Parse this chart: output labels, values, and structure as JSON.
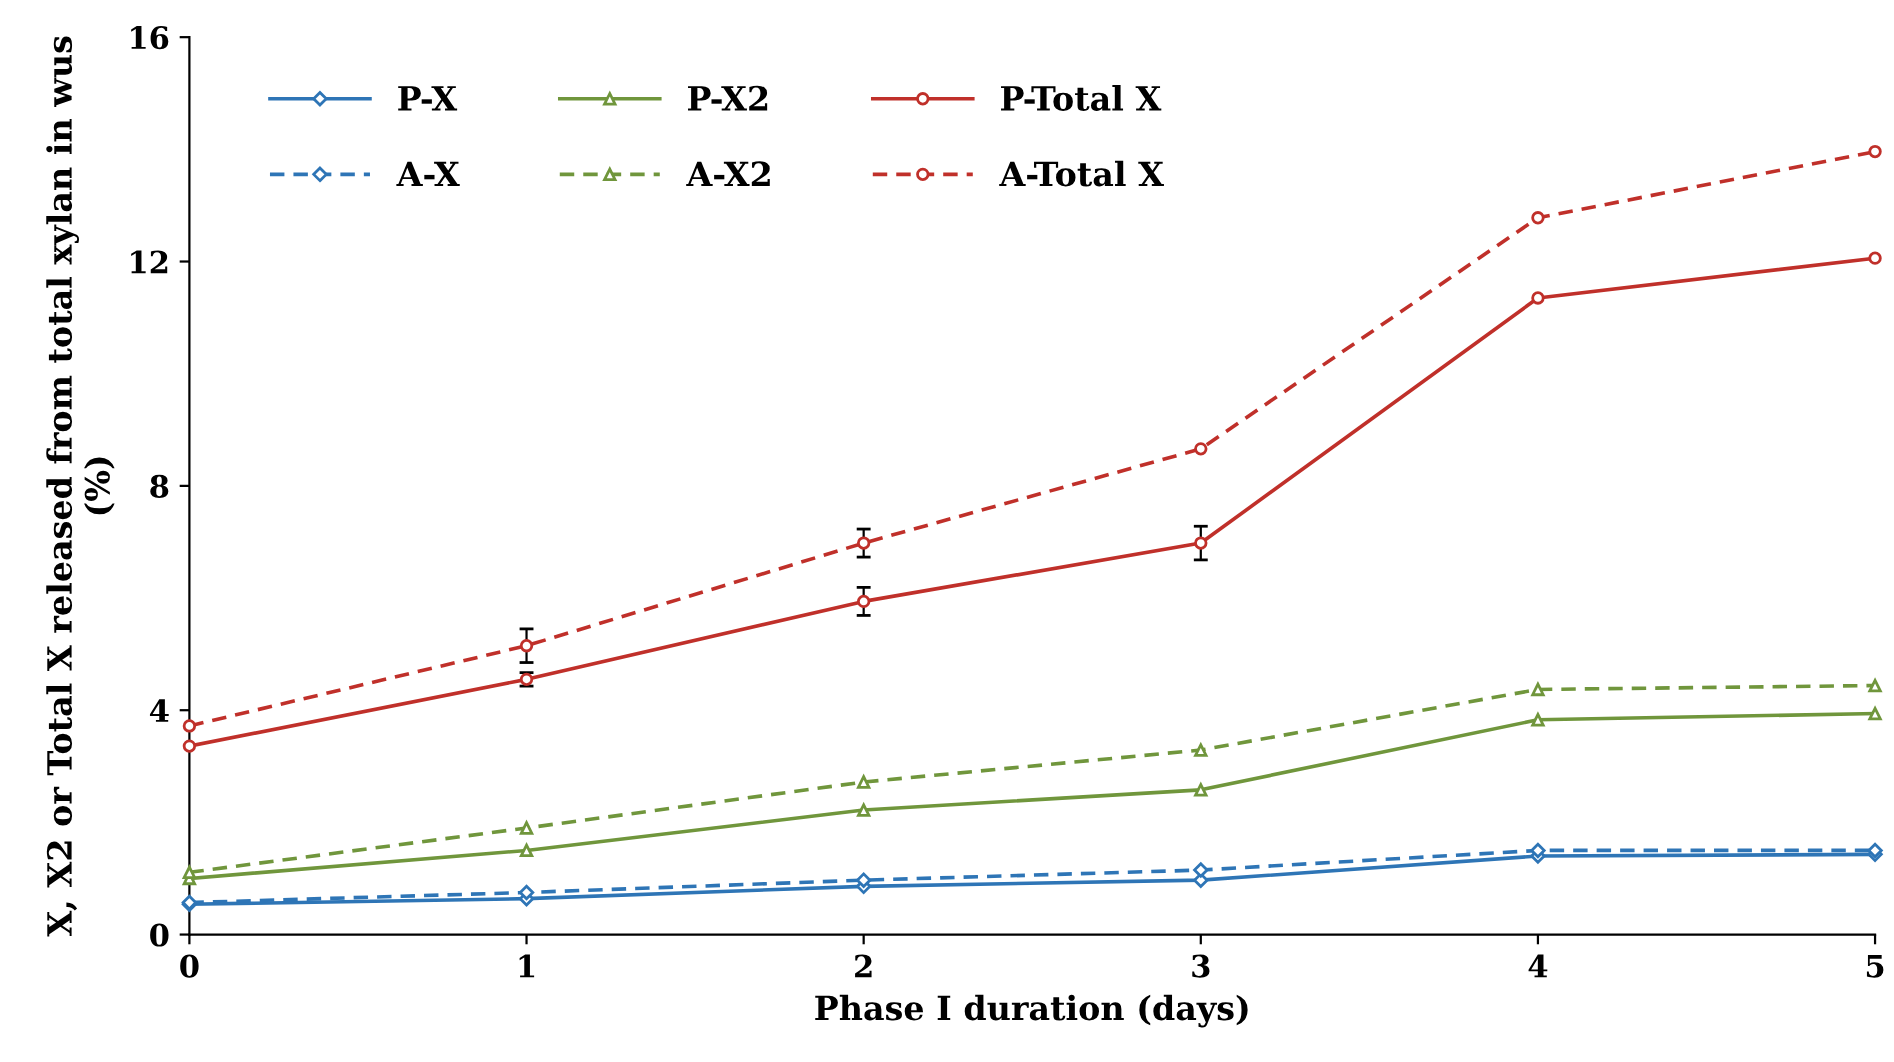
{
  "chart_data": {
    "type": "line",
    "xlabel": "Phase I duration (days)",
    "ylabel": "X, X2 or Total X released from total xylan in wus (%)",
    "x": [
      0,
      1,
      2,
      3,
      4,
      5
    ],
    "xlim": [
      0,
      5
    ],
    "xticks": [
      0,
      1,
      2,
      3,
      4,
      5
    ],
    "ylim": [
      0,
      16
    ],
    "yticks": [
      0,
      4,
      8,
      12,
      16
    ],
    "grid": false,
    "legend": "top left",
    "series": [
      {
        "name": "P-X",
        "color": "#2e75b6",
        "marker": "diamond",
        "line_style": "solid",
        "values": [
          0.54,
          0.64,
          0.86,
          0.97,
          1.4,
          1.43
        ]
      },
      {
        "name": "P-X2",
        "color": "#70963c",
        "marker": "triangle",
        "line_style": "solid",
        "values": [
          1.0,
          1.5,
          2.22,
          2.58,
          3.83,
          3.94
        ]
      },
      {
        "name": "P-Total X",
        "color": "#c0302a",
        "marker": "circle",
        "line_style": "solid",
        "values": [
          3.36,
          4.55,
          5.94,
          6.98,
          11.35,
          12.06
        ],
        "errors": [
          null,
          0.12,
          0.25,
          0.3,
          null,
          null
        ]
      },
      {
        "name": "A-X",
        "color": "#2e75b6",
        "marker": "diamond",
        "line_style": "dashed",
        "values": [
          0.57,
          0.75,
          0.97,
          1.15,
          1.5,
          1.5
        ]
      },
      {
        "name": "A-X2",
        "color": "#70963c",
        "marker": "triangle",
        "line_style": "dashed",
        "values": [
          1.11,
          1.9,
          2.72,
          3.29,
          4.37,
          4.44
        ]
      },
      {
        "name": "A-Total X",
        "color": "#c0302a",
        "marker": "circle",
        "line_style": "dashed",
        "values": [
          3.72,
          5.15,
          6.98,
          8.66,
          12.78,
          13.96
        ],
        "errors": [
          null,
          0.3,
          0.25,
          null,
          null,
          null
        ]
      }
    ]
  }
}
